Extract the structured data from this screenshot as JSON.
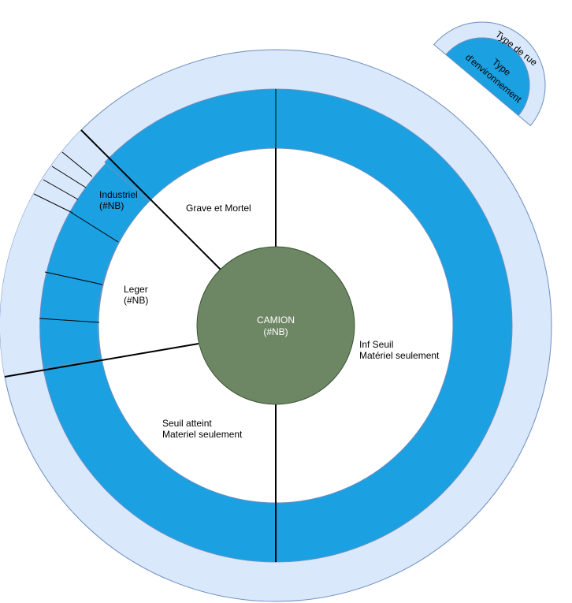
{
  "colors": {
    "outer_ring": "#dae8fc",
    "outer_stroke": "#6c8ebf",
    "mid_ring": "#1ba1e2",
    "inner_disc": "#ffffff",
    "center": "#6d8764",
    "center_stroke": "#3a5431",
    "lines": "#000000"
  },
  "center": {
    "line1": "CAMION",
    "line2": "(#NB)"
  },
  "segments": {
    "grave": "Grave et Mortel",
    "inf_seuil_line1": "Inf Seuil",
    "inf_seuil_line2": "Matériel seulement",
    "seuil_line1": "Seuil atteint",
    "seuil_line2": "Materiel seulement",
    "leger_line1": "Leger",
    "leger_line2": "(#NB)",
    "industriel_line1": "Industriel",
    "industriel_line2": "(#NB)"
  },
  "legend": {
    "outer_label": "Type de rue",
    "inner_label_line1": "Type",
    "inner_label_line2": "d'environnement"
  }
}
